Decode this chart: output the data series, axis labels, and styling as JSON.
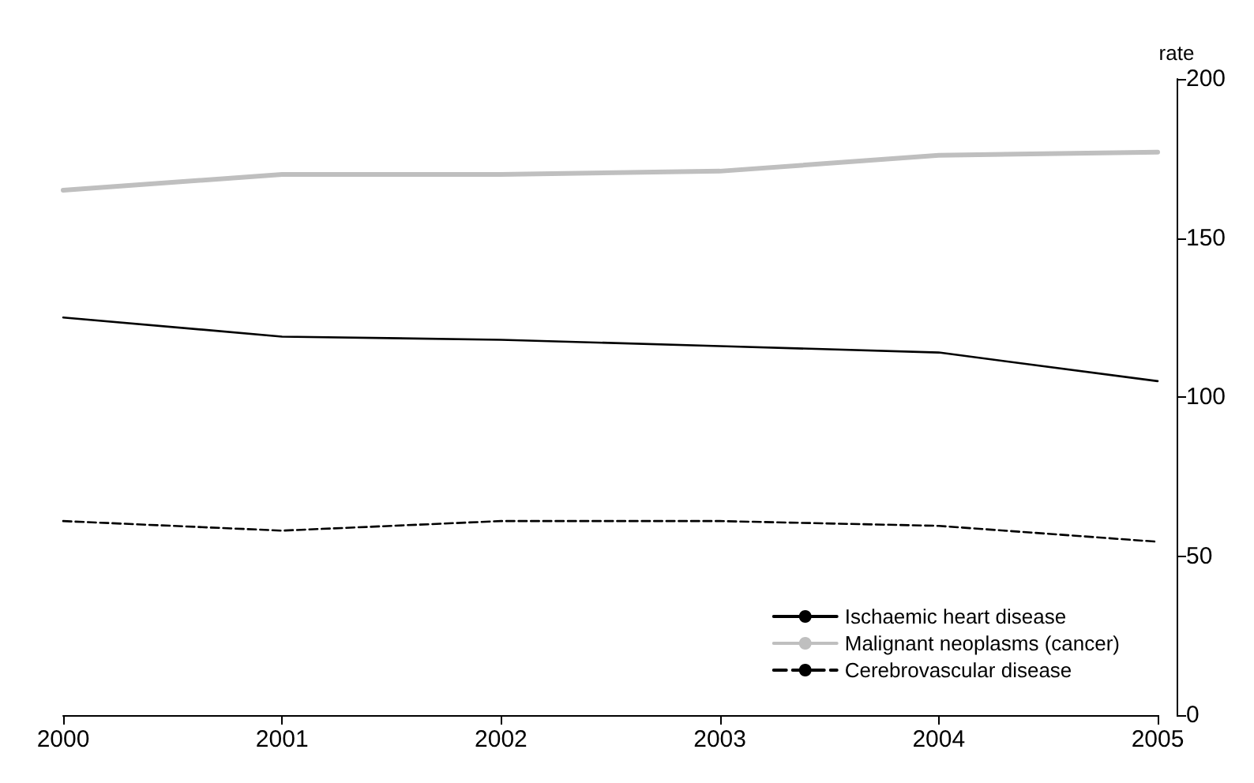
{
  "chart_data": {
    "type": "line",
    "ylabel": "rate",
    "x": [
      2000,
      2001,
      2002,
      2003,
      2004,
      2005
    ],
    "xlim": [
      2000,
      2005
    ],
    "xticks": [
      2000,
      2001,
      2002,
      2003,
      2004,
      2005
    ],
    "ylim": [
      0,
      200
    ],
    "yticks": [
      0,
      50,
      100,
      150,
      200
    ],
    "series": [
      {
        "name": "Ischaemic heart disease",
        "color": "#000000",
        "line_style": "solid",
        "values": [
          125,
          119,
          118,
          116,
          114,
          105
        ]
      },
      {
        "name": "Malignant neoplasms (cancer)",
        "color": "#bfbfbf",
        "line_style": "solid",
        "values": [
          165,
          170,
          170,
          171,
          176,
          177
        ]
      },
      {
        "name": "Cerebrovascular disease",
        "color": "#000000",
        "line_style": "dashed",
        "values": [
          61,
          58,
          61,
          61,
          59.5,
          54.5
        ]
      }
    ],
    "grid": false,
    "legend": "bottom right",
    "marker": "none"
  }
}
